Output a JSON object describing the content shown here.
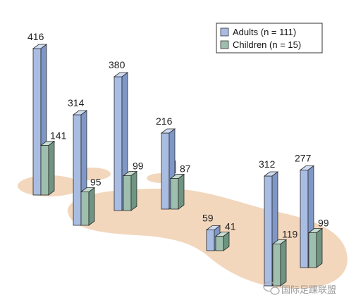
{
  "chart_data": {
    "type": "bar",
    "title": "",
    "xlabel": "",
    "ylabel": "",
    "ylim": [
      0,
      450
    ],
    "grid": false,
    "legend_position": "top-right",
    "categories": [
      "",
      "",
      "",
      "",
      "",
      "",
      ""
    ],
    "series": [
      {
        "name": "Adults (n = 111)",
        "values": [
          416,
          314,
          380,
          216,
          59,
          312,
          277
        ],
        "color": "#a9bde3"
      },
      {
        "name": "Children (n = 15)",
        "values": [
          141,
          95,
          99,
          87,
          41,
          119,
          99
        ],
        "color": "#9fbfae"
      }
    ]
  },
  "colors": {
    "foot": "#f2d7bd",
    "adult_top": "#cfdcf3",
    "adult_side": "#7f97c6",
    "child_top": "#c6dccf",
    "child_side": "#6f9582",
    "outline": "#2a2a2a"
  },
  "watermark": {
    "text": "国际足踝联盟",
    "icon": "wechat-icon"
  }
}
